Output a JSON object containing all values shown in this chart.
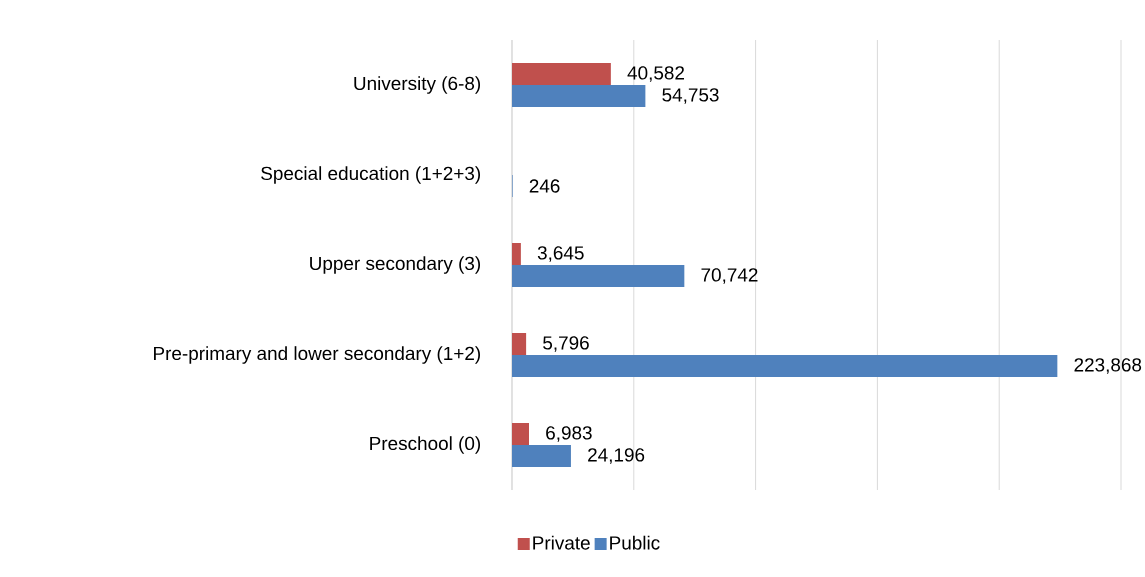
{
  "chart_data": {
    "type": "bar",
    "orientation": "horizontal",
    "categories": [
      "University (6-8)",
      "Special education (1+2+3)",
      "Upper secondary (3)",
      "Pre-primary and lower secondary (1+2)",
      "Preschool (0)"
    ],
    "series": [
      {
        "name": "Private",
        "color": "#c0504d",
        "values": [
          40582,
          null,
          3645,
          5796,
          6983
        ],
        "value_labels": [
          "40,582",
          null,
          "3,645",
          "5,796",
          "6,983"
        ]
      },
      {
        "name": "Public",
        "color": "#4f81bd",
        "values": [
          54753,
          246,
          70742,
          223868,
          24196
        ],
        "value_labels": [
          "54,753",
          "246",
          "70,742",
          "223,868",
          "24,196"
        ]
      }
    ],
    "xlim": [
      0,
      250000
    ],
    "xticks": [
      {
        "value": 0,
        "label": null
      },
      {
        "value": 50000,
        "label": null
      },
      {
        "value": 100000,
        "label": null
      },
      {
        "value": 150000,
        "label": null
      },
      {
        "value": 200000,
        "label": null
      },
      {
        "value": 250000,
        "label": null
      }
    ],
    "tick_labels": "y",
    "grid": "x",
    "legend": "bottom"
  }
}
